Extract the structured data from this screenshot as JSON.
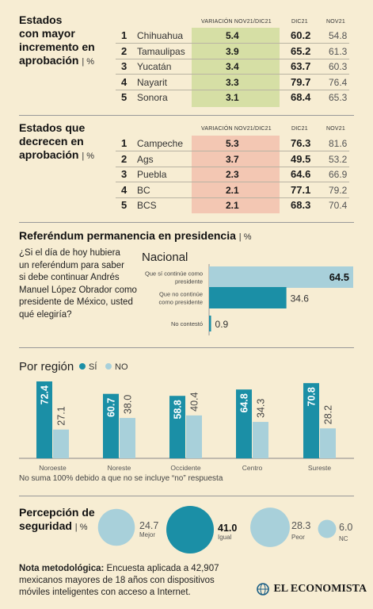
{
  "increase": {
    "title": [
      "Estados",
      "con mayor",
      "incremento en",
      "aprobación"
    ],
    "unit": "%",
    "headers": {
      "var": "VARIACIÓN NOV21/DIC21",
      "dic": "DIC21",
      "nov": "NOV21"
    },
    "rows": [
      {
        "rank": "1",
        "state": "Chihuahua",
        "var": "5.4",
        "dic": "60.2",
        "nov": "54.8"
      },
      {
        "rank": "2",
        "state": "Tamaulipas",
        "var": "3.9",
        "dic": "65.2",
        "nov": "61.3"
      },
      {
        "rank": "3",
        "state": "Yucatán",
        "var": "3.4",
        "dic": "63.7",
        "nov": "60.3"
      },
      {
        "rank": "4",
        "state": "Nayarit",
        "var": "3.3",
        "dic": "79.7",
        "nov": "76.4"
      },
      {
        "rank": "5",
        "state": "Sonora",
        "var": "3.1",
        "dic": "68.4",
        "nov": "65.3"
      }
    ],
    "highlight_color": "#d6dfa5"
  },
  "decrease": {
    "title": [
      "Estados que",
      "decrecen en",
      "aprobación"
    ],
    "unit": "%",
    "headers": {
      "var": "VARIACIÓN NOV21/DIC21",
      "dic": "DIC21",
      "nov": "NOV21"
    },
    "rows": [
      {
        "rank": "1",
        "state": "Campeche",
        "var": "5.3",
        "dic": "76.3",
        "nov": "81.6"
      },
      {
        "rank": "2",
        "state": "Ags",
        "var": "3.7",
        "dic": "49.5",
        "nov": "53.2"
      },
      {
        "rank": "3",
        "state": "Puebla",
        "var": "2.3",
        "dic": "64.6",
        "nov": "66.9"
      },
      {
        "rank": "4",
        "state": "BC",
        "var": "2.1",
        "dic": "77.1",
        "nov": "79.2"
      },
      {
        "rank": "5",
        "state": "BCS",
        "var": "2.1",
        "dic": "68.3",
        "nov": "70.4"
      }
    ],
    "highlight_color": "#f3c7b3"
  },
  "referendum": {
    "title": "Referéndum permanencia en presidencia",
    "unit": "%",
    "question": [
      "¿Si el día de hoy hubiera",
      "un referéndum para saber",
      "si debe continuar Andrés",
      "Manuel López Obrador como",
      "presidente de México, usted",
      "qué elegiría?"
    ],
    "nacional_label": "Nacional"
  },
  "region": {
    "title": "Por región",
    "legend_si": "SÍ",
    "legend_no": "NO",
    "footnote": "No suma 100% debido a que no se incluye “no” respuesta"
  },
  "seguridad": {
    "title": [
      "Percepción de",
      "seguridad"
    ],
    "unit": "%"
  },
  "note": {
    "bold": "Nota metodológica:",
    "text1": " Encuesta aplicada a 42,907",
    "text2": "mexicanos mayores de 18 años con dispositivos",
    "text3": "móviles inteligentes con acceso a Internet."
  },
  "brand": "EL ECONOMISTA",
  "colors": {
    "teal": "#1b8fa6",
    "light": "#a8d0da",
    "background": "#f7edd3"
  },
  "chart_data": [
    {
      "type": "bar",
      "title": "Nacional",
      "orientation": "horizontal",
      "categories": [
        "Que sí continúe como presidente",
        "Que no continúe como presidente",
        "No contestó"
      ],
      "values": [
        64.5,
        34.6,
        0.9
      ],
      "value_labels": [
        "64.5",
        "34.6",
        "0.9"
      ],
      "xlim": [
        0,
        70
      ]
    },
    {
      "type": "bar",
      "title": "Por región",
      "categories": [
        "Noroeste",
        "Noreste",
        "Occidente",
        "Centro",
        "Sureste"
      ],
      "series": [
        {
          "name": "SÍ",
          "values": [
            72.4,
            60.7,
            58.8,
            64.8,
            70.8
          ],
          "labels": [
            "72.4",
            "60.7",
            "58.8",
            "64.8",
            "70.8"
          ]
        },
        {
          "name": "NO",
          "values": [
            27.1,
            38.0,
            40.4,
            34.3,
            28.2
          ],
          "labels": [
            "27.1",
            "38.0",
            "40.4",
            "34.3",
            "28.2"
          ]
        }
      ],
      "ylim": [
        0,
        80
      ]
    },
    {
      "type": "bubble",
      "title": "Percepción de seguridad",
      "categories": [
        "Mejor",
        "Igual",
        "Peor",
        "NC"
      ],
      "values": [
        24.7,
        41.0,
        28.3,
        6.0
      ],
      "value_labels": [
        "24.7",
        "41.0",
        "28.3",
        "6.0"
      ]
    }
  ]
}
